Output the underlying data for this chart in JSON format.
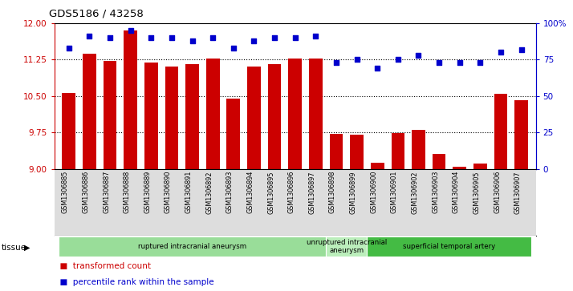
{
  "title": "GDS5186 / 43258",
  "samples": [
    "GSM1306885",
    "GSM1306886",
    "GSM1306887",
    "GSM1306888",
    "GSM1306889",
    "GSM1306890",
    "GSM1306891",
    "GSM1306892",
    "GSM1306893",
    "GSM1306894",
    "GSM1306895",
    "GSM1306896",
    "GSM1306897",
    "GSM1306898",
    "GSM1306899",
    "GSM1306900",
    "GSM1306901",
    "GSM1306902",
    "GSM1306903",
    "GSM1306904",
    "GSM1306905",
    "GSM1306906",
    "GSM1306907"
  ],
  "transformed_count": [
    10.57,
    11.37,
    11.23,
    11.85,
    11.19,
    11.1,
    11.15,
    11.27,
    10.45,
    11.1,
    11.15,
    11.27,
    11.27,
    9.72,
    9.7,
    9.12,
    9.73,
    9.8,
    9.3,
    9.05,
    9.1,
    10.55,
    10.42
  ],
  "percentile_rank": [
    83,
    91,
    90,
    95,
    90,
    90,
    88,
    90,
    83,
    88,
    90,
    90,
    91,
    73,
    75,
    69,
    75,
    78,
    73,
    73,
    73,
    80,
    82
  ],
  "ylim_left": [
    9,
    12
  ],
  "ylim_right": [
    0,
    100
  ],
  "yticks_left": [
    9,
    9.75,
    10.5,
    11.25,
    12
  ],
  "yticks_right": [
    0,
    25,
    50,
    75,
    100
  ],
  "bar_color": "#cc0000",
  "dot_color": "#0000cc",
  "tissue_groups": [
    {
      "label": "ruptured intracranial aneurysm",
      "start": 0,
      "end": 13,
      "color": "#99dd99"
    },
    {
      "label": "unruptured intracranial\naneurysm",
      "start": 13,
      "end": 15,
      "color": "#bbeebb"
    },
    {
      "label": "superficial temporal artery",
      "start": 15,
      "end": 23,
      "color": "#44bb44"
    }
  ],
  "legend_items": [
    {
      "label": "transformed count",
      "color": "#cc0000"
    },
    {
      "label": "percentile rank within the sample",
      "color": "#0000cc"
    }
  ],
  "tissue_label": "tissue",
  "background_color": "#ffffff",
  "plot_bg_color": "#ffffff",
  "ticklabel_bg_color": "#dddddd",
  "left_tick_color": "#cc0000",
  "right_tick_color": "#0000cc"
}
